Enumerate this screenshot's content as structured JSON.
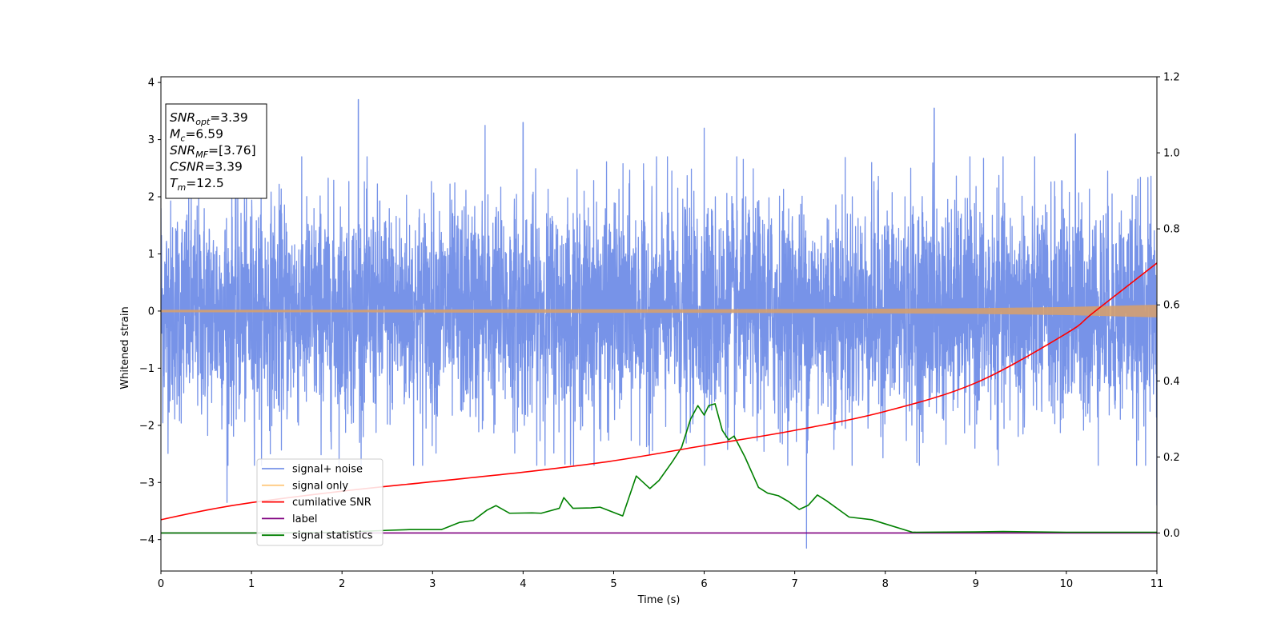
{
  "chart_data": {
    "type": "line",
    "xlabel": "Time (s)",
    "ylabel": "Whitened strain",
    "xlim": [
      0,
      11
    ],
    "ylim_left": [
      -4.55,
      4.1
    ],
    "ylim_right": [
      -0.1,
      1.2
    ],
    "x_ticks": [
      "0",
      "1",
      "2",
      "3",
      "4",
      "5",
      "6",
      "7",
      "8",
      "9",
      "10",
      "11"
    ],
    "y_left_ticks": [
      "−4",
      "−3",
      "−2",
      "−1",
      "0",
      "1",
      "2",
      "3",
      "4"
    ],
    "y_right_ticks": [
      "0.0",
      "0.2",
      "0.4",
      "0.6",
      "0.8",
      "1.0",
      "1.2"
    ],
    "info_box": [
      {
        "base": "SNR",
        "sub": "opt",
        "value": "=3.39"
      },
      {
        "base": "M",
        "sub": "c",
        "value": "=6.59"
      },
      {
        "base": "SNR",
        "sub": "MF",
        "value": "=[3.76]"
      },
      {
        "base": "CSNR",
        "sub": "",
        "value": "=3.39"
      },
      {
        "base": "T",
        "sub": "m",
        "value": "=12.5"
      }
    ],
    "legend_position": "lower-left",
    "series": [
      {
        "name": "signal+ noise",
        "axis": "left",
        "color": "#7793e8",
        "style": "dense noise trace, typical envelope about ±2 with spikes",
        "x": [
          0.0,
          0.73,
          2.18,
          3.58,
          4.0,
          6.0,
          7.13,
          8.54,
          10.1,
          11.0
        ],
        "y": [
          1.8,
          -3.35,
          3.7,
          3.25,
          3.3,
          3.2,
          -4.15,
          3.55,
          3.1,
          -3.4
        ]
      },
      {
        "name": "signal only",
        "axis": "left",
        "color": "#ffca80",
        "style": "small oscillation around 0, amplitude growing near the end",
        "x": [
          0,
          2,
          4,
          6,
          8,
          9,
          10,
          10.5,
          11
        ],
        "y": [
          0.02,
          0.02,
          0.03,
          0.03,
          0.04,
          0.05,
          0.07,
          0.09,
          0.11
        ]
      },
      {
        "name": "cumilative SNR",
        "axis": "right",
        "color": "#ff0000",
        "x": [
          0,
          0.5,
          1,
          2,
          3,
          4,
          5,
          6,
          7,
          8,
          9,
          10,
          10.3,
          11
        ],
        "y": [
          0.035,
          0.06,
          0.08,
          0.11,
          0.135,
          0.16,
          0.19,
          0.23,
          0.27,
          0.32,
          0.395,
          0.525,
          0.58,
          0.71
        ]
      },
      {
        "name": "label",
        "axis": "right",
        "color": "#800080",
        "x": [
          0,
          11
        ],
        "y": [
          0.0,
          0.0
        ]
      },
      {
        "name": "signal statistics",
        "axis": "right",
        "color": "#008000",
        "x": [
          0,
          1,
          2,
          2.5,
          2.75,
          3.1,
          3.3,
          3.45,
          3.6,
          3.7,
          3.85,
          4.1,
          4.2,
          4.4,
          4.45,
          4.55,
          4.75,
          4.85,
          5.1,
          5.25,
          5.4,
          5.5,
          5.65,
          5.75,
          5.85,
          5.93,
          6.0,
          6.05,
          6.12,
          6.2,
          6.27,
          6.33,
          6.45,
          6.6,
          6.7,
          6.82,
          6.93,
          7.05,
          7.15,
          7.25,
          7.35,
          7.6,
          7.85,
          8.0,
          8.3,
          9.0,
          9.3,
          10.0,
          11.0
        ],
        "y": [
          0.0,
          0.0,
          0.002,
          0.007,
          0.009,
          0.009,
          0.028,
          0.033,
          0.06,
          0.072,
          0.052,
          0.053,
          0.052,
          0.065,
          0.093,
          0.065,
          0.066,
          0.068,
          0.045,
          0.15,
          0.117,
          0.138,
          0.188,
          0.225,
          0.3,
          0.335,
          0.31,
          0.335,
          0.34,
          0.27,
          0.245,
          0.255,
          0.2,
          0.12,
          0.105,
          0.098,
          0.083,
          0.062,
          0.073,
          0.1,
          0.085,
          0.042,
          0.035,
          0.024,
          0.002,
          0.003,
          0.004,
          0.002,
          0.002
        ]
      }
    ]
  }
}
